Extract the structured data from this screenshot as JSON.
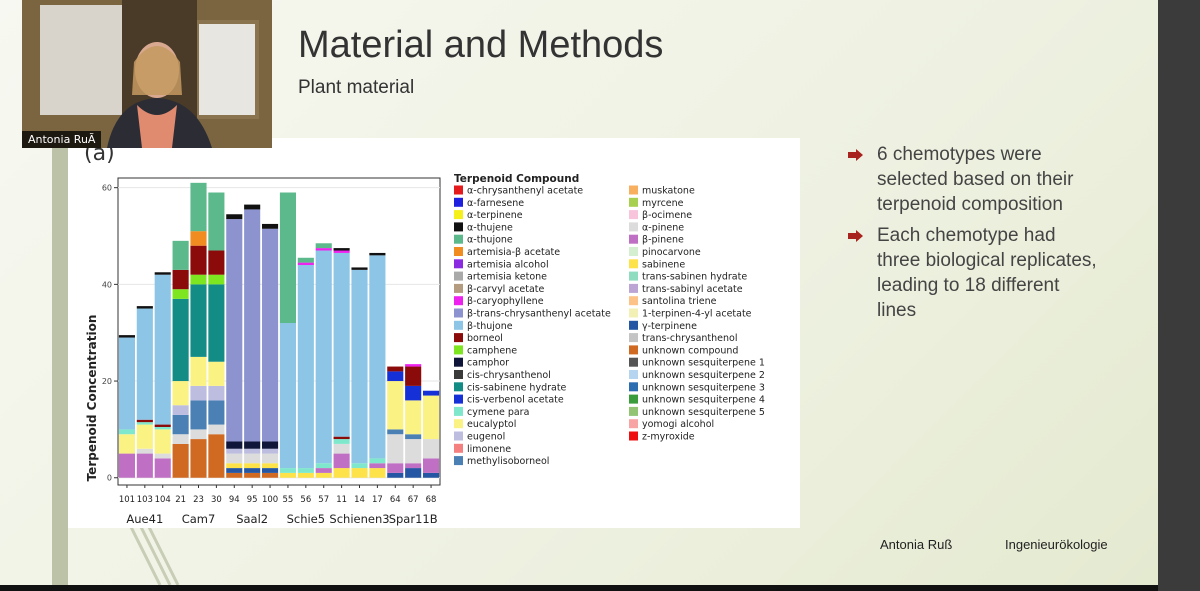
{
  "video": {
    "name": "Antonia RuÃ"
  },
  "slide": {
    "title": "Material and Methods",
    "subtitle": "Plant material",
    "bullets": [
      "6 chemotypes were selected based on their terpenoid composition",
      "Each chemotype had three biological replicates, leading to 18 different lines"
    ],
    "footer": {
      "author": "Antonia Ruß",
      "department": "Ingenieurökologie"
    }
  },
  "chart_data": {
    "type": "stacked_bar",
    "panel_label": "(a)",
    "y_label": "Terpenoid Concentration",
    "legend_title": "Terpenoid Compound",
    "categories": [
      "101",
      "103",
      "104",
      "21",
      "23",
      "30",
      "94",
      "95",
      "100",
      "55",
      "56",
      "57",
      "11",
      "14",
      "17",
      "64",
      "67",
      "68"
    ],
    "groups": [
      "Aue41",
      "Cam7",
      "Saal2",
      "Schie5",
      "Schienen3",
      "Spar11B"
    ],
    "ylim": [
      -1.5,
      62
    ],
    "yticks": [
      0,
      20,
      40,
      60
    ],
    "grid": true,
    "series": [
      {
        "name": "α-chrysanthenyl acetate",
        "color": "#e41a1c",
        "values": [
          0,
          0,
          0,
          0,
          0,
          0,
          0,
          0,
          0,
          0,
          0,
          0,
          0,
          0,
          0,
          0,
          0,
          0
        ]
      },
      {
        "name": "α-farnesene",
        "color": "#1f1fe0",
        "values": [
          0,
          0,
          0,
          0,
          0,
          0,
          0,
          0,
          0,
          0,
          0,
          0,
          0,
          0,
          0,
          0,
          0,
          0
        ]
      },
      {
        "name": "α-terpinene",
        "color": "#f5ef1a",
        "values": [
          0,
          0,
          0,
          0,
          0,
          0,
          0,
          0,
          0,
          0,
          0,
          0,
          0,
          0,
          0,
          0,
          0,
          0
        ]
      },
      {
        "name": "α-thujene",
        "color": "#111111",
        "values": [
          0.5,
          0.5,
          0.5,
          0,
          0,
          0,
          1,
          1,
          1,
          0,
          0,
          0,
          0.5,
          0.5,
          0.5,
          0,
          0,
          0
        ]
      },
      {
        "name": "α-thujone",
        "color": "#5cb98c",
        "values": [
          0,
          0,
          0,
          6,
          10,
          12,
          0,
          0,
          0,
          27,
          1,
          1,
          0,
          0,
          0,
          0,
          0,
          0
        ]
      },
      {
        "name": "artemisia-β acetate",
        "color": "#f08c20",
        "values": [
          0,
          0,
          0,
          0,
          3,
          0,
          0,
          0,
          0,
          0,
          0,
          0,
          0,
          0,
          0,
          0,
          0,
          0
        ]
      },
      {
        "name": "artemisia alcohol",
        "color": "#8a2be2",
        "values": [
          0,
          0,
          0,
          0,
          0,
          0,
          0,
          0,
          0,
          0,
          0,
          0,
          0,
          0,
          0,
          0,
          0,
          0
        ]
      },
      {
        "name": "artemisia ketone",
        "color": "#a9a9a9",
        "values": [
          0,
          0,
          0,
          0,
          0,
          0,
          0,
          0,
          0,
          0,
          0,
          0,
          0,
          0,
          0,
          0,
          0,
          0
        ]
      },
      {
        "name": "β-carvyl acetate",
        "color": "#b49c80",
        "values": [
          0,
          0,
          0,
          0,
          0,
          0,
          0,
          0,
          0,
          0,
          0,
          0,
          0,
          0,
          0,
          0,
          0,
          0
        ]
      },
      {
        "name": "β-caryophyllene",
        "color": "#ee22ee",
        "values": [
          0,
          0,
          0,
          0,
          0,
          0,
          0,
          0,
          0,
          0,
          0.5,
          0.5,
          0.5,
          0,
          0,
          0,
          0.5,
          0
        ]
      },
      {
        "name": "β-trans-chrysanthenyl acetate",
        "color": "#8d93cf",
        "values": [
          0,
          0,
          0,
          0,
          0,
          0,
          46,
          48,
          44,
          0,
          0,
          0,
          0,
          0,
          0,
          0,
          0,
          0
        ]
      },
      {
        "name": "β-thujone",
        "color": "#8cc5e6",
        "values": [
          19,
          23,
          31,
          0,
          0,
          0,
          0,
          0,
          0,
          30,
          42,
          44,
          38,
          40,
          42,
          0,
          0,
          0
        ]
      },
      {
        "name": "borneol",
        "color": "#8b0a0a",
        "values": [
          0,
          0.5,
          0.5,
          4,
          6,
          5,
          0,
          0,
          0,
          0,
          0,
          0,
          0.5,
          0,
          0,
          1,
          4,
          0
        ]
      },
      {
        "name": "camphene",
        "color": "#7ee620",
        "values": [
          0,
          0,
          0,
          2,
          2,
          2,
          0,
          0,
          0,
          0,
          0,
          0,
          0,
          0,
          0,
          0,
          0,
          0
        ]
      },
      {
        "name": "camphor",
        "color": "#10153a",
        "values": [
          0,
          0,
          0,
          0,
          0,
          0,
          1.5,
          1.5,
          1.5,
          0,
          0,
          0,
          0,
          0,
          0,
          0,
          0,
          0
        ]
      },
      {
        "name": "cis-chrysanthenol",
        "color": "#3a3a3a",
        "values": [
          0,
          0,
          0,
          0,
          0,
          0,
          0,
          0,
          0,
          0,
          0,
          0,
          0,
          0,
          0,
          0,
          0,
          0
        ]
      },
      {
        "name": "cis-sabinene hydrate",
        "color": "#138c86",
        "values": [
          0,
          0,
          0,
          17,
          15,
          16,
          0,
          0,
          0,
          0,
          0,
          0,
          0,
          0,
          0,
          0,
          0,
          0
        ]
      },
      {
        "name": "cis-verbenol acetate",
        "color": "#1630d8",
        "values": [
          0,
          0,
          0,
          0,
          0,
          0,
          0,
          0,
          0,
          0,
          0,
          0,
          0,
          0,
          0,
          2,
          3,
          1
        ]
      },
      {
        "name": "cymene para",
        "color": "#7fe8cc",
        "values": [
          1,
          0.5,
          0.5,
          0,
          0,
          0,
          0,
          0,
          0,
          1,
          1,
          1,
          1,
          1,
          1,
          0,
          0,
          0
        ]
      },
      {
        "name": "eucalyptol",
        "color": "#fbf284",
        "values": [
          4,
          5,
          5,
          5,
          6,
          5,
          0,
          0,
          0,
          0,
          0,
          0,
          0,
          0,
          0,
          10,
          7,
          9
        ]
      },
      {
        "name": "eugenol",
        "color": "#bdbde0",
        "values": [
          0,
          0,
          0,
          2,
          3,
          3,
          1,
          1,
          1,
          0,
          0,
          0,
          0,
          0,
          0,
          0,
          0,
          0
        ]
      },
      {
        "name": "limonene",
        "color": "#f58080",
        "values": [
          0,
          0,
          0,
          0,
          0,
          0,
          0,
          0,
          0,
          0,
          0,
          0,
          0,
          0,
          0,
          0,
          0,
          0
        ]
      },
      {
        "name": "methylisoborneol",
        "color": "#4a80b4",
        "values": [
          0,
          0,
          0,
          4,
          6,
          5,
          0,
          0,
          0,
          0,
          0,
          0,
          0,
          0,
          0,
          1,
          1,
          0
        ]
      },
      {
        "name": "muskatone",
        "color": "#f8b060",
        "values": [
          0,
          0,
          0,
          0,
          0,
          0,
          0,
          0,
          0,
          0,
          0,
          0,
          0,
          0,
          0,
          0,
          0,
          0
        ]
      },
      {
        "name": "myrcene",
        "color": "#a8d050",
        "values": [
          0,
          0,
          0,
          0,
          0,
          0,
          0,
          0,
          0,
          0,
          0,
          0,
          0,
          0,
          0,
          0,
          0,
          0
        ]
      },
      {
        "name": "β-ocimene",
        "color": "#f8c4dc",
        "values": [
          0,
          0,
          0,
          0,
          0,
          0,
          0,
          0,
          0,
          0,
          0,
          0,
          0,
          0,
          0,
          0,
          0,
          0
        ]
      },
      {
        "name": "α-pinene",
        "color": "#dcdcdc",
        "values": [
          0,
          1,
          1,
          2,
          2,
          2,
          2,
          2,
          2,
          0,
          0,
          0,
          2,
          0,
          0,
          6,
          5,
          4
        ]
      },
      {
        "name": "β-pinene",
        "color": "#c070c4",
        "values": [
          5,
          5,
          4,
          0,
          0,
          0,
          0,
          0,
          0,
          0,
          0,
          1,
          3,
          0,
          1,
          2,
          1,
          3
        ]
      },
      {
        "name": "pinocarvone",
        "color": "#d4efd0",
        "values": [
          0,
          0,
          0,
          0,
          0,
          0,
          0,
          0,
          0,
          0,
          0,
          0,
          0,
          0,
          0,
          0,
          0,
          0
        ]
      },
      {
        "name": "sabinene",
        "color": "#fde24a",
        "values": [
          0,
          0,
          0,
          0,
          0,
          0,
          1,
          1,
          1,
          1,
          1,
          1,
          2,
          2,
          2,
          0,
          0,
          0
        ]
      },
      {
        "name": "trans-sabinen hydrate",
        "color": "#90dcc0",
        "values": [
          0,
          0,
          0,
          0,
          0,
          0,
          0,
          0,
          0,
          0,
          0,
          0,
          0,
          0,
          0,
          0,
          0,
          0
        ]
      },
      {
        "name": "trans-sabinyl acetate",
        "color": "#bca4d4",
        "values": [
          0,
          0,
          0,
          0,
          0,
          0,
          0,
          0,
          0,
          0,
          0,
          0,
          0,
          0,
          0,
          0,
          0,
          0
        ]
      },
      {
        "name": "santolina triene",
        "color": "#fcc288",
        "values": [
          0,
          0,
          0,
          0,
          0,
          0,
          0,
          0,
          0,
          0,
          0,
          0,
          0,
          0,
          0,
          0,
          0,
          0
        ]
      },
      {
        "name": "1-terpinen-4-yl acetate",
        "color": "#f2f0b4",
        "values": [
          0,
          0,
          0,
          0,
          0,
          0,
          0,
          0,
          0,
          0,
          0,
          0,
          0,
          0,
          0,
          0,
          0,
          0
        ]
      },
      {
        "name": "γ-terpinene",
        "color": "#2456a4",
        "values": [
          0,
          0,
          0,
          0,
          0,
          0,
          1,
          1,
          1,
          0,
          0,
          0,
          0,
          0,
          0,
          1,
          2,
          1
        ]
      },
      {
        "name": "trans-chrysanthenol",
        "color": "#c4c4c4",
        "values": [
          0,
          0,
          0,
          0,
          0,
          0,
          0,
          0,
          0,
          0,
          0,
          0,
          0,
          0,
          0,
          0,
          0,
          0
        ]
      },
      {
        "name": "unknown compound",
        "color": "#d06a22",
        "values": [
          0,
          0,
          0,
          7,
          8,
          9,
          1,
          1,
          1,
          0,
          0,
          0,
          0,
          0,
          0,
          0,
          0,
          0
        ]
      },
      {
        "name": "unknown sesquiterpene 1",
        "color": "#555555",
        "values": [
          0,
          0,
          0,
          0,
          0,
          0,
          0,
          0,
          0,
          0,
          0,
          0,
          0,
          0,
          0,
          0,
          0,
          0
        ]
      },
      {
        "name": "unknown sesquiterpene 2",
        "color": "#b4d4f0",
        "values": [
          0,
          0,
          0,
          0,
          0,
          0,
          0,
          0,
          0,
          0,
          0,
          0,
          0,
          0,
          0,
          0,
          0,
          0
        ]
      },
      {
        "name": "unknown sesquiterpene 3",
        "color": "#2c6cb0",
        "values": [
          0,
          0,
          0,
          0,
          0,
          0,
          0,
          0,
          0,
          0,
          0,
          0,
          0,
          0,
          0,
          0,
          0,
          0
        ]
      },
      {
        "name": "unknown sesquiterpene 4",
        "color": "#3a9c3a",
        "values": [
          0,
          0,
          0,
          0,
          0,
          0,
          0,
          0,
          0,
          0,
          0,
          0,
          0,
          0,
          0,
          0,
          0,
          0
        ]
      },
      {
        "name": "unknown sesquiterpene 5",
        "color": "#92c474",
        "values": [
          0,
          0,
          0,
          0,
          0,
          0,
          0,
          0,
          0,
          0,
          0,
          0,
          0,
          0,
          0,
          0,
          0,
          0
        ]
      },
      {
        "name": "yomogi alcohol",
        "color": "#f8a4a4",
        "values": [
          0,
          0,
          0,
          0,
          0,
          0,
          0,
          0,
          0,
          0,
          0,
          0,
          0,
          0,
          0,
          0,
          0,
          0
        ]
      },
      {
        "name": "z-myroxide",
        "color": "#ee1010",
        "values": [
          0,
          0,
          0,
          0,
          0,
          0,
          0,
          0,
          0,
          0,
          0,
          0,
          0,
          0,
          0,
          0,
          0,
          0
        ]
      }
    ]
  }
}
